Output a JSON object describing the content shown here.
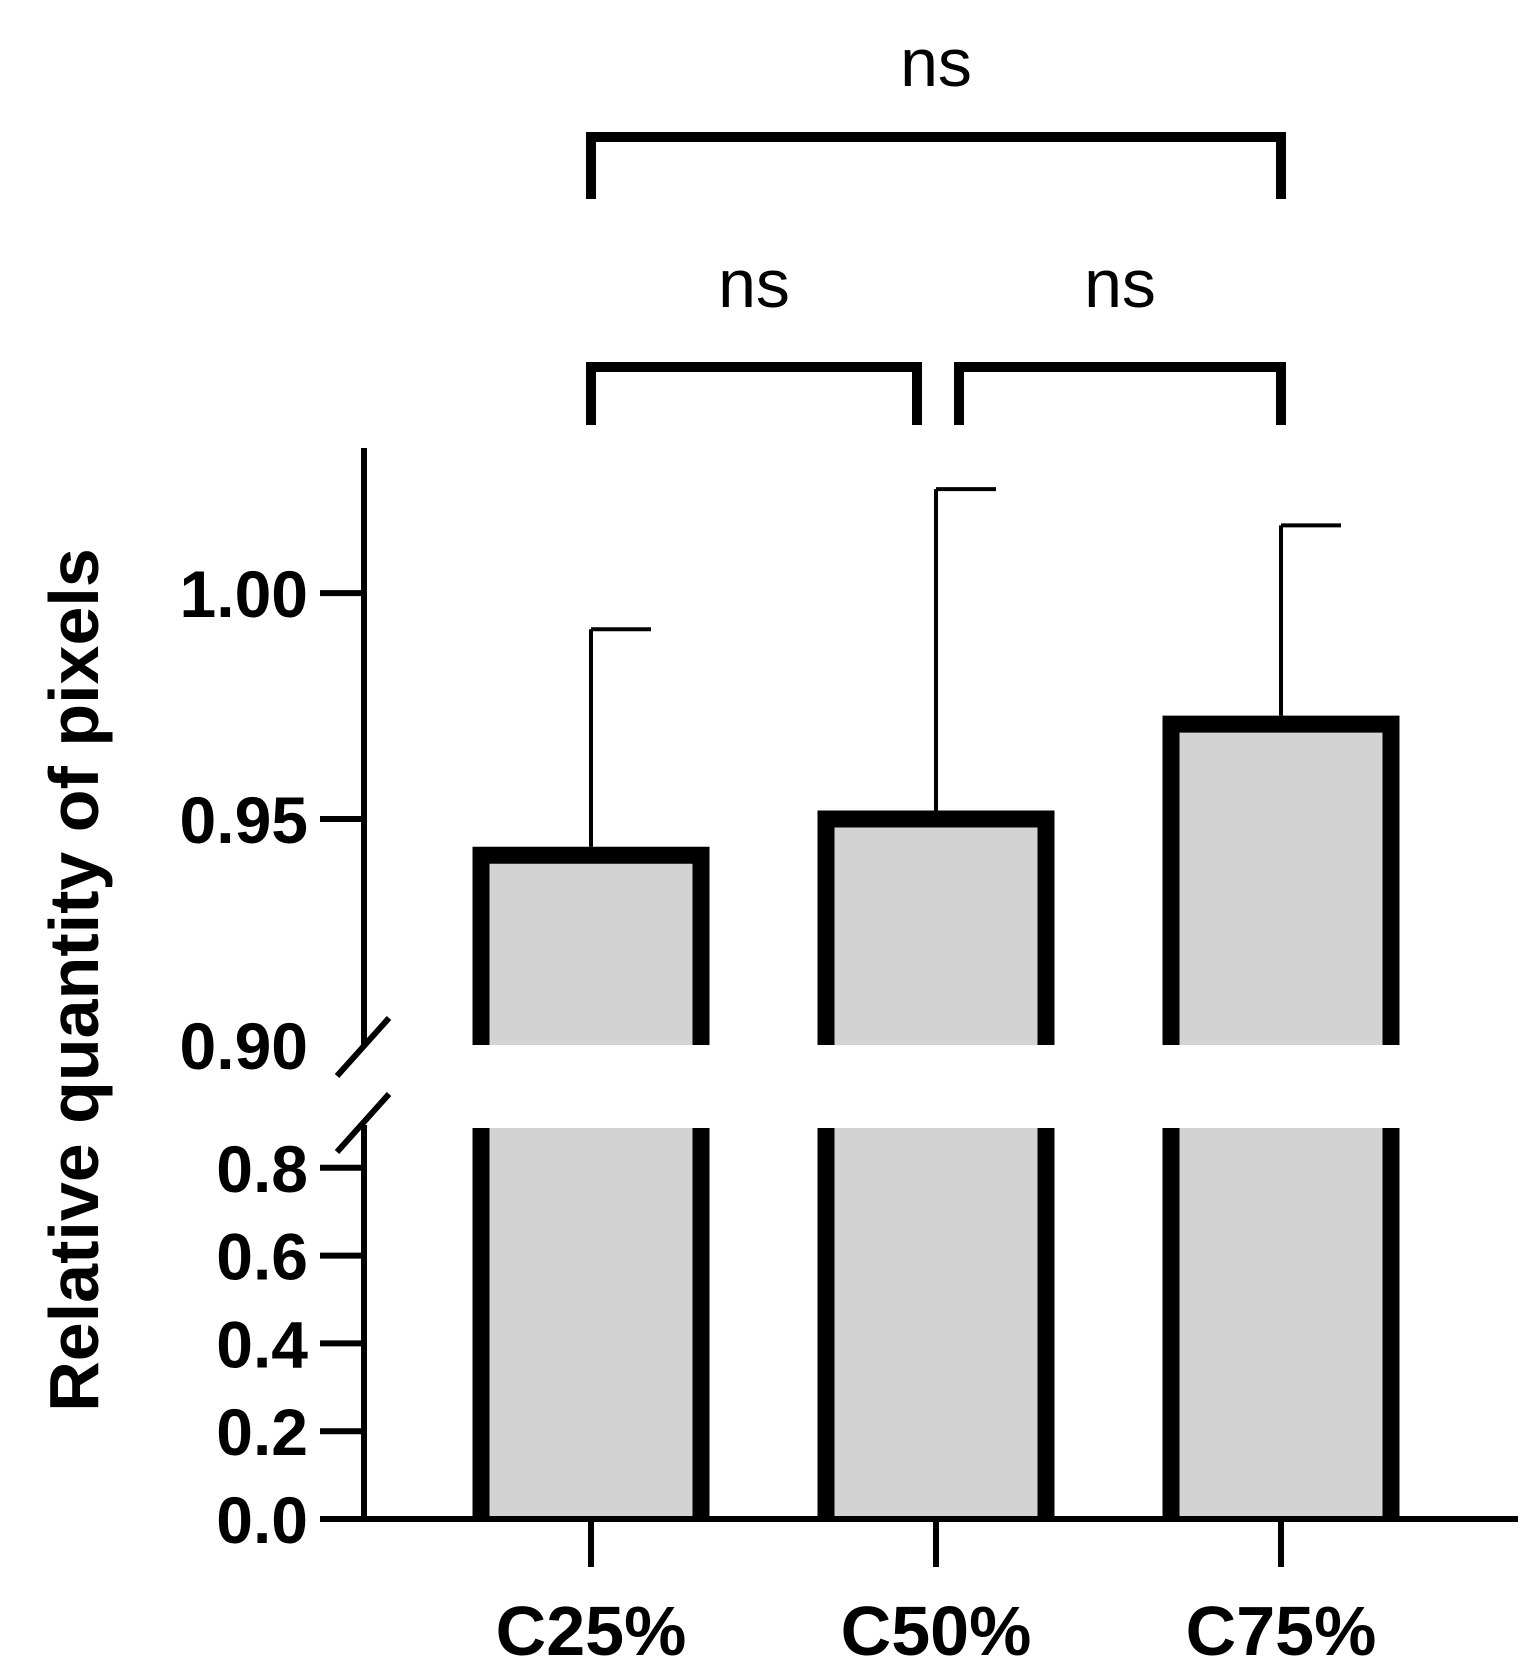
{
  "chart_data": {
    "type": "bar",
    "ylabel": "Relative quantity of pixels",
    "xlabel": "",
    "title": "",
    "categories": [
      "C25%",
      "C50%",
      "C75%"
    ],
    "values": [
      0.942,
      0.95,
      0.971
    ],
    "error_upper": [
      0.992,
      1.023,
      1.015
    ],
    "y_axis_break": true,
    "ylim_lower_segment": [
      0,
      0.88
    ],
    "ylim_upper_segment": [
      0.9,
      1.03
    ],
    "yticks_lower": [
      "0.0",
      "0.2",
      "0.4",
      "0.6",
      "0.8"
    ],
    "yticks_upper": [
      "0.90",
      "0.95",
      "1.00"
    ],
    "bar_fill": "#d3d3d3",
    "bar_stroke": "#000000",
    "grid": false,
    "comparisons": [
      {
        "from": "C25%",
        "to": "C50%",
        "label": "ns"
      },
      {
        "from": "C50%",
        "to": "C75%",
        "label": "ns"
      },
      {
        "from": "C25%",
        "to": "C75%",
        "label": "ns"
      }
    ]
  }
}
